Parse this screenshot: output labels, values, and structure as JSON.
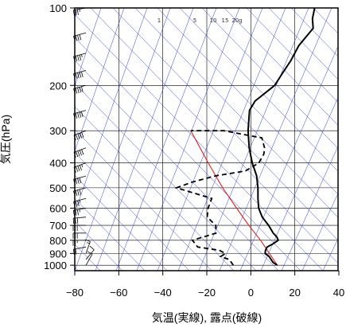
{
  "chart_data": {
    "type": "skew-t log-p sounding",
    "xlabel": "気温(実線), 露点(破線)",
    "ylabel": "気圧(hPa)",
    "xlim": [
      -80,
      40
    ],
    "ylim": [
      1050,
      100
    ],
    "y_scale": "log",
    "x_ticks": [
      -80,
      -60,
      -40,
      -20,
      0,
      20,
      40
    ],
    "x_tick_labels": [
      "−80",
      "−60",
      "−40",
      "−20",
      "0",
      "20",
      "40"
    ],
    "p_ticks": [
      100,
      200,
      300,
      400,
      500,
      600,
      700,
      800,
      900,
      1000
    ],
    "mixing_ratio_labels": [
      "1",
      "5",
      "10",
      "15",
      "20g"
    ],
    "grid": true,
    "colors": {
      "guide_lines": "#2b3bd6",
      "parcel": "#e02020",
      "profile": "#000000"
    },
    "temperature": [
      {
        "p": 1000,
        "t": 10
      },
      {
        "p": 975,
        "t": 7
      },
      {
        "p": 950,
        "t": 5
      },
      {
        "p": 925,
        "t": 3
      },
      {
        "p": 900,
        "t": 0
      },
      {
        "p": 875,
        "t": -1
      },
      {
        "p": 850,
        "t": -1.5
      },
      {
        "p": 825,
        "t": 0
      },
      {
        "p": 800,
        "t": 1
      },
      {
        "p": 775,
        "t": -1
      },
      {
        "p": 750,
        "t": -4
      },
      {
        "p": 700,
        "t": -9
      },
      {
        "p": 650,
        "t": -15
      },
      {
        "p": 600,
        "t": -20
      },
      {
        "p": 550,
        "t": -24
      },
      {
        "p": 500,
        "t": -28
      },
      {
        "p": 450,
        "t": -33
      },
      {
        "p": 400,
        "t": -40
      },
      {
        "p": 350,
        "t": -47
      },
      {
        "p": 300,
        "t": -54
      },
      {
        "p": 250,
        "t": -61
      },
      {
        "p": 230,
        "t": -62
      },
      {
        "p": 200,
        "t": -59
      },
      {
        "p": 180,
        "t": -60
      },
      {
        "p": 160,
        "t": -61
      },
      {
        "p": 140,
        "t": -63
      },
      {
        "p": 120,
        "t": -63
      },
      {
        "p": 110,
        "t": -67
      },
      {
        "p": 100,
        "t": -70
      }
    ],
    "dewpoint": [
      {
        "p": 1000,
        "t": -10
      },
      {
        "p": 950,
        "t": -14
      },
      {
        "p": 925,
        "t": -19
      },
      {
        "p": 900,
        "t": -18
      },
      {
        "p": 875,
        "t": -22
      },
      {
        "p": 850,
        "t": -33
      },
      {
        "p": 800,
        "t": -38
      },
      {
        "p": 775,
        "t": -34
      },
      {
        "p": 750,
        "t": -30
      },
      {
        "p": 700,
        "t": -33
      },
      {
        "p": 650,
        "t": -40
      },
      {
        "p": 600,
        "t": -43
      },
      {
        "p": 550,
        "t": -45
      },
      {
        "p": 500,
        "t": -65
      },
      {
        "p": 475,
        "t": -60
      },
      {
        "p": 450,
        "t": -52
      },
      {
        "p": 430,
        "t": -40
      },
      {
        "p": 400,
        "t": -37
      },
      {
        "p": 370,
        "t": -38
      },
      {
        "p": 350,
        "t": -40
      },
      {
        "p": 320,
        "t": -45
      },
      {
        "p": 300,
        "t": -65
      },
      {
        "p": 300,
        "t": -80
      }
    ],
    "parcel": [
      {
        "p": 1000,
        "t": 10
      },
      {
        "p": 900,
        "t": 2
      },
      {
        "p": 800,
        "t": -7
      },
      {
        "p": 700,
        "t": -18
      },
      {
        "p": 600,
        "t": -30
      },
      {
        "p": 500,
        "t": -44
      },
      {
        "p": 400,
        "t": -60
      },
      {
        "p": 300,
        "t": -80
      }
    ],
    "wind_barbs": [
      {
        "p": 1000,
        "dir": 30,
        "spd": 10
      },
      {
        "p": 950,
        "dir": 40,
        "spd": 10
      },
      {
        "p": 900,
        "dir": 20,
        "spd": 15
      },
      {
        "p": 850,
        "dir": 260,
        "spd": 20
      },
      {
        "p": 800,
        "dir": 270,
        "spd": 25
      },
      {
        "p": 750,
        "dir": 270,
        "spd": 30
      },
      {
        "p": 700,
        "dir": 270,
        "spd": 30
      },
      {
        "p": 650,
        "dir": 265,
        "spd": 30
      },
      {
        "p": 600,
        "dir": 260,
        "spd": 35
      },
      {
        "p": 550,
        "dir": 255,
        "spd": 35
      },
      {
        "p": 500,
        "dir": 255,
        "spd": 40
      },
      {
        "p": 450,
        "dir": 255,
        "spd": 40
      },
      {
        "p": 400,
        "dir": 250,
        "spd": 45
      },
      {
        "p": 350,
        "dir": 250,
        "spd": 50
      },
      {
        "p": 300,
        "dir": 250,
        "spd": 55
      },
      {
        "p": 250,
        "dir": 255,
        "spd": 60
      },
      {
        "p": 200,
        "dir": 255,
        "spd": 55
      },
      {
        "p": 175,
        "dir": 255,
        "spd": 50
      },
      {
        "p": 150,
        "dir": 255,
        "spd": 45
      },
      {
        "p": 125,
        "dir": 255,
        "spd": 40
      },
      {
        "p": 100,
        "dir": 260,
        "spd": 35
      }
    ]
  }
}
